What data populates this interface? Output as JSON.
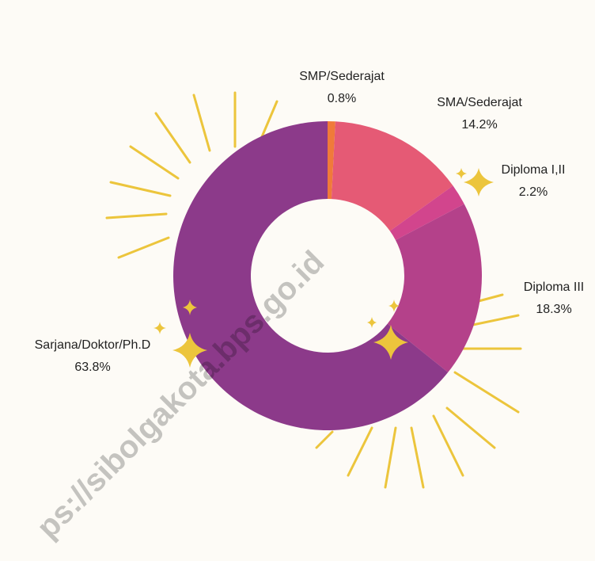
{
  "chart_data": {
    "type": "donut",
    "categories": [
      "SMP/Sederajat",
      "SMA/Sederajat",
      "Diploma I,II",
      "Diploma III",
      "Sarjana/Doktor/Ph.D"
    ],
    "values": [
      0.8,
      14.2,
      2.2,
      18.3,
      63.8
    ],
    "value_labels": [
      "0.8%",
      "14.2%",
      "2.2%",
      "18.3%",
      "63.8%"
    ],
    "colors": [
      "#f07a3a",
      "#e55a75",
      "#d2458d",
      "#b4418a",
      "#8c3a8a"
    ],
    "watermark": "ps://sibolgakota.bps.go.id"
  }
}
